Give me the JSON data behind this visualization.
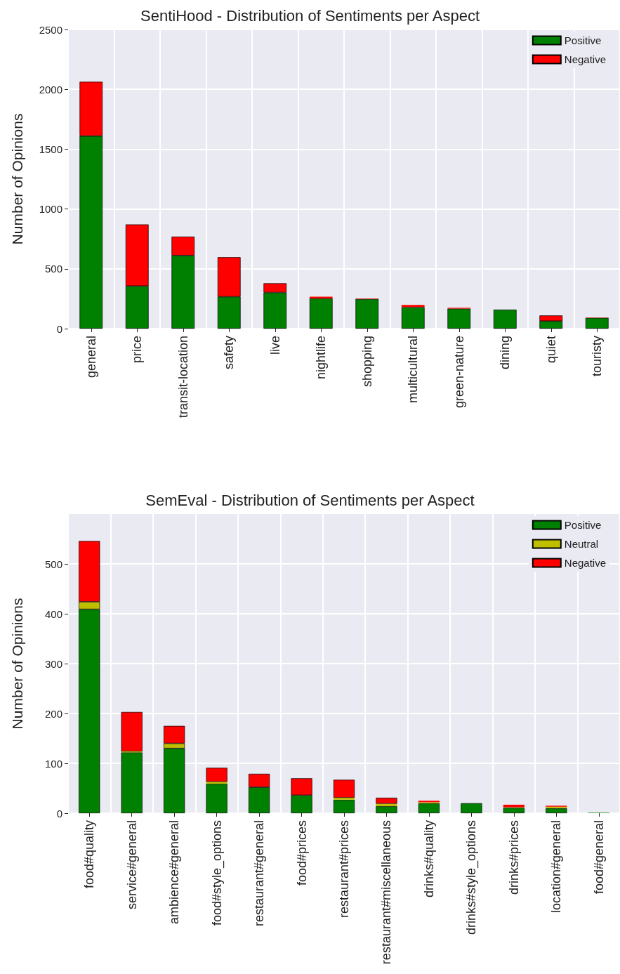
{
  "chart_data": [
    {
      "type": "bar",
      "title": "SentiHood - Distribution of Sentiments per Aspect",
      "ylabel": "Number of Opinions",
      "categories": [
        "general",
        "price",
        "transit-location",
        "safety",
        "live",
        "nightlife",
        "shopping",
        "multicultural",
        "green-nature",
        "dining",
        "quiet",
        "touristy"
      ],
      "stacked": true,
      "series": [
        {
          "name": "Positive",
          "color": "#008000",
          "values": [
            1610,
            356,
            611,
            267,
            302,
            253,
            247,
            180,
            167,
            159,
            63,
            90
          ]
        },
        {
          "name": "Negative",
          "color": "#ff0000",
          "values": [
            453,
            515,
            158,
            330,
            77,
            14,
            4,
            18,
            8,
            null,
            47,
            2
          ]
        }
      ],
      "ylim": [
        0,
        2500
      ],
      "yticks": [
        0,
        500,
        1000,
        1500,
        2000,
        2500
      ],
      "grid": true,
      "legend": "top right"
    },
    {
      "type": "bar",
      "title": "SemEval - Distribution of Sentiments per Aspect",
      "ylabel": "Number of Opinions",
      "categories": [
        "food#quality",
        "service#general",
        "ambience#general",
        "food#style_options",
        "restaurant#general",
        "food#prices",
        "restaurant#prices",
        "restaurant#miscellaneous",
        "drinks#quality",
        "drinks#style_options",
        "drinks#prices",
        "location#general",
        "food#general"
      ],
      "stacked": true,
      "series": [
        {
          "name": "Positive",
          "color": "#008000",
          "values": [
            409,
            122,
            130,
            59,
            52,
            36,
            27,
            14,
            20,
            20,
            11,
            10,
            1
          ]
        },
        {
          "name": "Neutral",
          "color": "#bfbf00",
          "values": [
            15,
            2,
            10,
            4,
            null,
            null,
            4,
            5,
            2,
            0,
            1,
            3,
            0
          ]
        },
        {
          "name": "Negative",
          "color": "#ff0000",
          "values": [
            122,
            79,
            35,
            28,
            27,
            34,
            36,
            12,
            3,
            0,
            5,
            2,
            0
          ]
        }
      ],
      "ylim": [
        0,
        600
      ],
      "yticks": [
        0,
        100,
        200,
        300,
        400,
        500
      ],
      "grid": true,
      "legend": "top right"
    }
  ]
}
